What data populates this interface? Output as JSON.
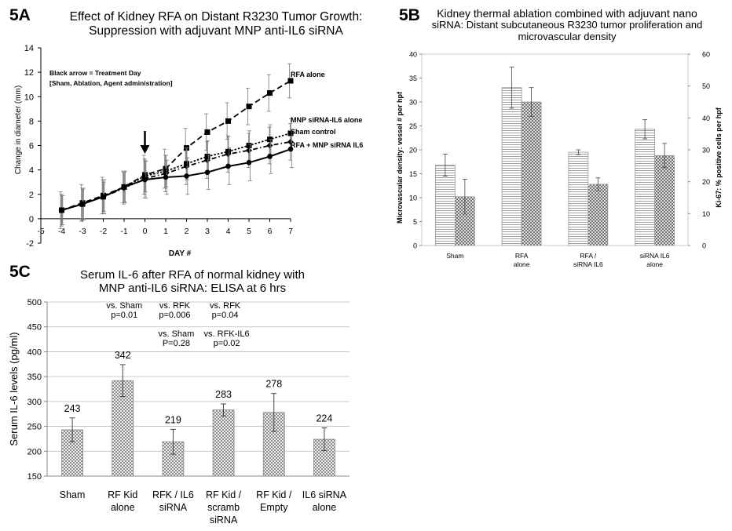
{
  "panels": {
    "a": {
      "label": "5A"
    },
    "b": {
      "label": "5B"
    },
    "c": {
      "label": "5C"
    }
  },
  "chart_data": [
    {
      "id": "5A",
      "type": "line",
      "title": "Effect of Kidney RFA on Distant R3230 Tumor Growth:",
      "subtitle": "Suppression with adjuvant MNP anti-IL6 siRNA",
      "xlabel": "DAY #",
      "ylabel": "Change in diameter (mm)",
      "xlim": [
        -5,
        7
      ],
      "ylim": [
        -2,
        14
      ],
      "xticks": [
        "-5",
        "-4",
        "-3",
        "-2",
        "-1",
        "0",
        "1",
        "2",
        "3",
        "4",
        "5",
        "6",
        "7"
      ],
      "yticks": [
        "-2",
        "0",
        "2",
        "4",
        "6",
        "8",
        "10",
        "12",
        "14"
      ],
      "annotation_lines": [
        "Black arrow = Treatment Day",
        "[Sham, Ablation, Agent administration]"
      ],
      "arrow_day": 0,
      "x": [
        -4,
        -3,
        -2,
        -1,
        0,
        1,
        2,
        3,
        4,
        5,
        6,
        7
      ],
      "series": [
        {
          "name": "RFA alone",
          "style": "dashed",
          "marker": "square",
          "values": [
            0.7,
            1.3,
            1.9,
            2.6,
            3.6,
            4.1,
            5.8,
            7.1,
            8.0,
            9.2,
            10.3,
            11.3
          ],
          "err": [
            1.5,
            1.5,
            1.5,
            1.3,
            1.6,
            1.6,
            1.6,
            1.5,
            1.5,
            1.5,
            1.5,
            1.4
          ]
        },
        {
          "name": "MNP siRNA-IL6 alone",
          "style": "dashdot",
          "marker": "diamond",
          "values": [
            0.7,
            1.2,
            1.8,
            2.5,
            3.3,
            3.7,
            4.3,
            4.8,
            5.3,
            5.6,
            6.0,
            6.3
          ],
          "err": [
            1.3,
            1.3,
            1.4,
            1.3,
            1.6,
            1.5,
            1.5,
            1.5,
            1.5,
            1.4,
            1.5,
            1.5
          ]
        },
        {
          "name": "Sham control",
          "style": "dotted",
          "marker": "square",
          "values": [
            0.7,
            1.2,
            1.8,
            2.6,
            3.5,
            3.9,
            4.5,
            5.1,
            5.5,
            6.0,
            6.5,
            7.0
          ],
          "err": [
            1.2,
            1.2,
            1.2,
            1.2,
            1.3,
            1.3,
            1.3,
            1.3,
            1.2,
            1.2,
            1.2,
            1.2
          ]
        },
        {
          "name": "RFA + MNP siRNA IL6",
          "style": "solid",
          "marker": "circle",
          "values": [
            0.7,
            1.2,
            1.8,
            2.6,
            3.2,
            3.4,
            3.5,
            3.8,
            4.3,
            4.6,
            5.1,
            5.7
          ],
          "err": [
            1.2,
            1.3,
            1.4,
            1.3,
            1.5,
            1.4,
            1.5,
            1.4,
            1.5,
            1.5,
            1.4,
            1.5
          ]
        }
      ]
    },
    {
      "id": "5B",
      "type": "bar",
      "title_lines": [
        "Kidney thermal ablation combined with adjuvant nano",
        "siRNA: Distant subcutaneous R3230 tumor proliferation and",
        "microvascular density"
      ],
      "ylabel": "Microvascular density: vessel # per hpf",
      "y2label": "Ki-67: % positive cells per hpf",
      "ylim": [
        0,
        40
      ],
      "y2lim": [
        0,
        60
      ],
      "yticks": [
        "0",
        "5",
        "10",
        "15",
        "20",
        "25",
        "30",
        "35",
        "40"
      ],
      "y2ticks": [
        "0",
        "10",
        "20",
        "30",
        "40",
        "50",
        "60"
      ],
      "categories": [
        [
          "Sham"
        ],
        [
          "RFA",
          "alone"
        ],
        [
          "RFA /",
          "siRNA IL6"
        ],
        [
          "siRNA IL6",
          "alone"
        ]
      ],
      "series": [
        {
          "name": "",
          "axis": "left",
          "pattern": "hstripe",
          "values": [
            16.8,
            33.0,
            19.5,
            24.3
          ],
          "err": [
            2.3,
            4.3,
            0.5,
            2.0
          ]
        },
        {
          "name": "",
          "axis": "right",
          "pattern": "crosshatch",
          "values": [
            15.3,
            45.0,
            19.2,
            28.2
          ],
          "err": [
            5.5,
            4.5,
            2.0,
            3.8
          ]
        }
      ]
    },
    {
      "id": "5C",
      "type": "bar",
      "title_lines": [
        "Serum IL-6 after RFA of normal kidney with",
        "MNP anti-IL6 siRNA: ELISA at 6 hrs"
      ],
      "ylabel": "Serum IL-6 levels (pg/ml)",
      "ylim": [
        150,
        500
      ],
      "yticks": [
        "150",
        "200",
        "250",
        "300",
        "350",
        "400",
        "450",
        "500"
      ],
      "grid": true,
      "categories": [
        [
          "Sham"
        ],
        [
          "RF Kid",
          "alone"
        ],
        [
          "RFK / IL6",
          "siRNA"
        ],
        [
          "RF Kid /",
          "scramb",
          "siRNA"
        ],
        [
          "RF Kid /",
          "Empty"
        ],
        [
          "IL6 siRNA",
          "alone"
        ]
      ],
      "values": [
        243,
        342,
        219,
        283,
        278,
        224
      ],
      "value_labels": [
        "243",
        "342",
        "219",
        "283",
        "278",
        "224"
      ],
      "err": [
        24,
        32,
        25,
        12,
        38,
        23
      ],
      "stats_row1": [
        {
          "col": 1,
          "lines": [
            "vs. Sham",
            "p=0.01"
          ]
        },
        {
          "col": 2,
          "lines": [
            "vs. RFK",
            "p=0.006"
          ]
        },
        {
          "col": 3,
          "lines": [
            "vs. RFK",
            "p=0.04"
          ]
        }
      ],
      "stats_row2": [
        {
          "col": 2,
          "lines": [
            "vs. Sham",
            "P=0.28"
          ]
        },
        {
          "col": 3,
          "lines": [
            "vs. RFK-IL6",
            "p=0.02"
          ]
        }
      ]
    }
  ]
}
